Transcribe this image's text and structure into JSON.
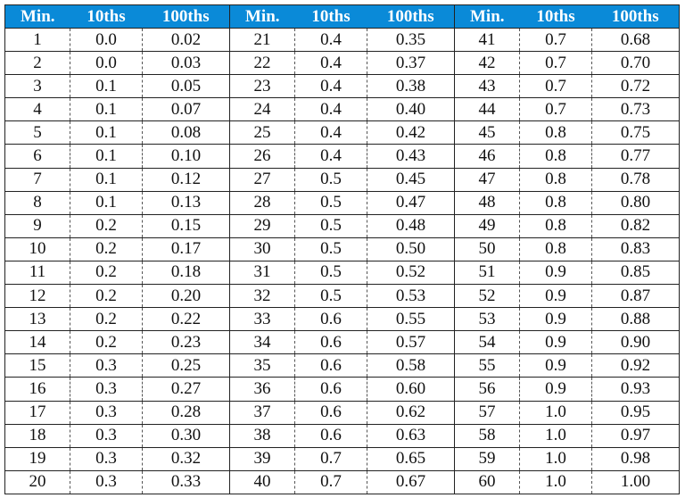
{
  "header": [
    "Min.",
    "10ths",
    "100ths",
    "Min.",
    "10ths",
    "100ths",
    "Min.",
    "10ths",
    "100ths"
  ],
  "colors": {
    "header_bg": "#0a8ad8",
    "header_text": "#ffffff"
  },
  "rows": [
    [
      "1",
      "0.0",
      "0.02",
      "21",
      "0.4",
      "0.35",
      "41",
      "0.7",
      "0.68"
    ],
    [
      "2",
      "0.0",
      "0.03",
      "22",
      "0.4",
      "0.37",
      "42",
      "0.7",
      "0.70"
    ],
    [
      "3",
      "0.1",
      "0.05",
      "23",
      "0.4",
      "0.38",
      "43",
      "0.7",
      "0.72"
    ],
    [
      "4",
      "0.1",
      "0.07",
      "24",
      "0.4",
      "0.40",
      "44",
      "0.7",
      "0.73"
    ],
    [
      "5",
      "0.1",
      "0.08",
      "25",
      "0.4",
      "0.42",
      "45",
      "0.8",
      "0.75"
    ],
    [
      "6",
      "0.1",
      "0.10",
      "26",
      "0.4",
      "0.43",
      "46",
      "0.8",
      "0.77"
    ],
    [
      "7",
      "0.1",
      "0.12",
      "27",
      "0.5",
      "0.45",
      "47",
      "0.8",
      "0.78"
    ],
    [
      "8",
      "0.1",
      "0.13",
      "28",
      "0.5",
      "0.47",
      "48",
      "0.8",
      "0.80"
    ],
    [
      "9",
      "0.2",
      "0.15",
      "29",
      "0.5",
      "0.48",
      "49",
      "0.8",
      "0.82"
    ],
    [
      "10",
      "0.2",
      "0.17",
      "30",
      "0.5",
      "0.50",
      "50",
      "0.8",
      "0.83"
    ],
    [
      "11",
      "0.2",
      "0.18",
      "31",
      "0.5",
      "0.52",
      "51",
      "0.9",
      "0.85"
    ],
    [
      "12",
      "0.2",
      "0.20",
      "32",
      "0.5",
      "0.53",
      "52",
      "0.9",
      "0.87"
    ],
    [
      "13",
      "0.2",
      "0.22",
      "33",
      "0.6",
      "0.55",
      "53",
      "0.9",
      "0.88"
    ],
    [
      "14",
      "0.2",
      "0.23",
      "34",
      "0.6",
      "0.57",
      "54",
      "0.9",
      "0.90"
    ],
    [
      "15",
      "0.3",
      "0.25",
      "35",
      "0.6",
      "0.58",
      "55",
      "0.9",
      "0.92"
    ],
    [
      "16",
      "0.3",
      "0.27",
      "36",
      "0.6",
      "0.60",
      "56",
      "0.9",
      "0.93"
    ],
    [
      "17",
      "0.3",
      "0.28",
      "37",
      "0.6",
      "0.62",
      "57",
      "1.0",
      "0.95"
    ],
    [
      "18",
      "0.3",
      "0.30",
      "38",
      "0.6",
      "0.63",
      "58",
      "1.0",
      "0.97"
    ],
    [
      "19",
      "0.3",
      "0.32",
      "39",
      "0.7",
      "0.65",
      "59",
      "1.0",
      "0.98"
    ],
    [
      "20",
      "0.3",
      "0.33",
      "40",
      "0.7",
      "0.67",
      "60",
      "1.0",
      "1.00"
    ]
  ]
}
